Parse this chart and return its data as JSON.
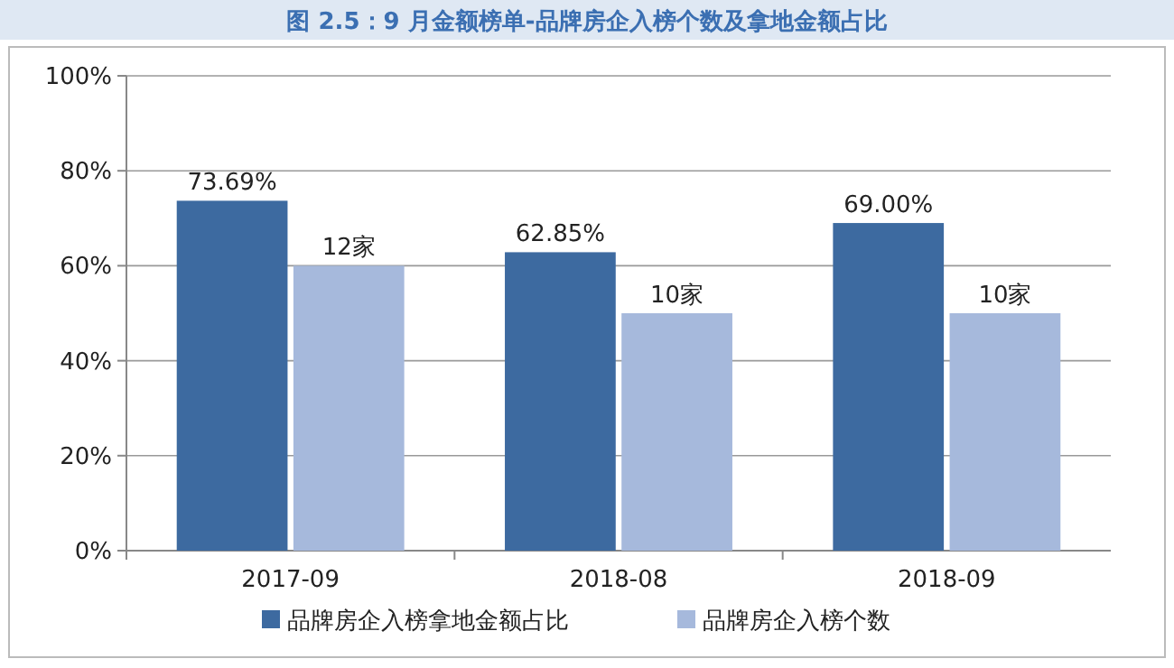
{
  "chart_data": {
    "type": "bar",
    "title": "图 2.5：9 月金额榜单-品牌房企入榜个数及拿地金额占比",
    "categories": [
      "2017-09",
      "2018-08",
      "2018-09"
    ],
    "series": [
      {
        "name": "品牌房企入榜拿地金额占比",
        "color": "#3d6aa0",
        "values": [
          73.69,
          62.85,
          69.0
        ],
        "value_labels": [
          "73.69%",
          "62.85%",
          "69.00%"
        ]
      },
      {
        "name": "品牌房企入榜个数",
        "color": "#a6b9dc",
        "values": [
          12,
          10,
          10
        ],
        "value_labels": [
          "12家",
          "10家",
          "10家"
        ],
        "axis": "y2"
      }
    ],
    "ylim": [
      0,
      100
    ],
    "yticks": [
      {
        "value": 0,
        "label": "0%"
      },
      {
        "value": 20,
        "label": "20%"
      },
      {
        "value": 40,
        "label": "40%"
      },
      {
        "value": 60,
        "label": "60%"
      },
      {
        "value": 80,
        "label": "80%"
      },
      {
        "value": 100,
        "label": "100%"
      }
    ],
    "y2lim": [
      0,
      20
    ],
    "grid": "y",
    "legend": "bottom"
  }
}
